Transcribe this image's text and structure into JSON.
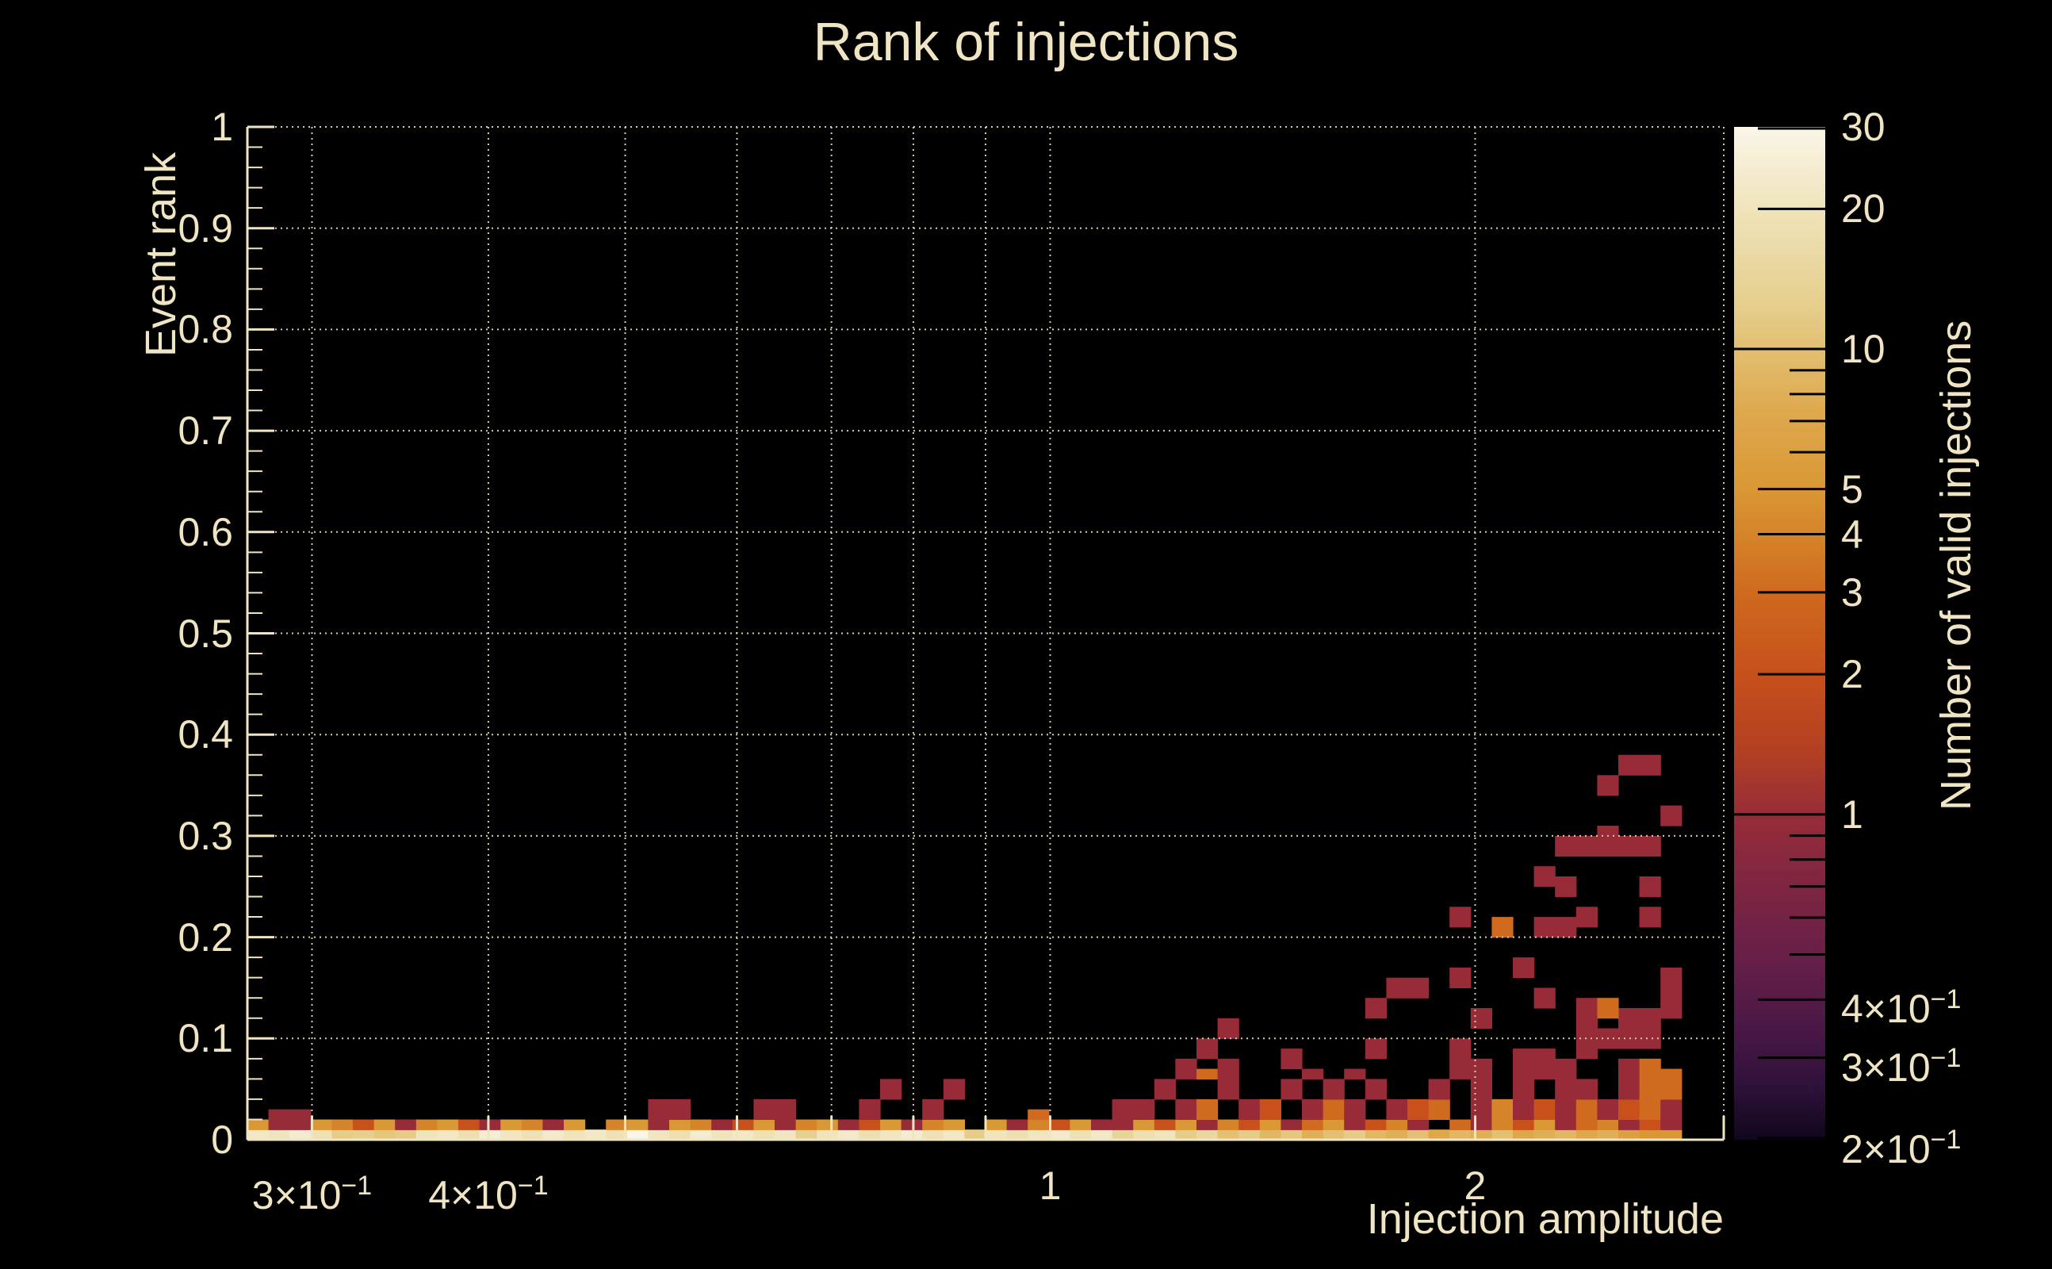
{
  "title": "Rank of injections",
  "colors": {
    "background": "#000000",
    "text": "#f0e5c3",
    "axis": "#f0e5c3",
    "grid": "#d6ccad",
    "palette_tick": "#000000"
  },
  "axes": {
    "x": {
      "title": "Injection amplitude",
      "scale": "log",
      "min": 0.27,
      "max": 3.0,
      "tick_labels": [
        {
          "base": "3×10",
          "sup": "−1",
          "value": 0.3
        },
        {
          "base": "4×10",
          "sup": "−1",
          "value": 0.4
        },
        {
          "base": "1",
          "sup": "",
          "value": 1
        },
        {
          "base": "2",
          "sup": "",
          "value": 2
        }
      ],
      "gridlines": [
        0.3,
        0.4,
        0.5,
        0.6,
        0.7,
        0.8,
        0.9,
        1,
        2,
        3
      ]
    },
    "y": {
      "title": "Event rank",
      "scale": "linear",
      "min": 0,
      "max": 1,
      "major_step": 0.1,
      "minor_step": 0.02,
      "tick_labels": [
        {
          "base": "0",
          "value": 0
        },
        {
          "base": "0.1",
          "value": 0.1
        },
        {
          "base": "0.2",
          "value": 0.2
        },
        {
          "base": "0.3",
          "value": 0.3
        },
        {
          "base": "0.4",
          "value": 0.4
        },
        {
          "base": "0.5",
          "value": 0.5
        },
        {
          "base": "0.6",
          "value": 0.6
        },
        {
          "base": "0.7",
          "value": 0.7
        },
        {
          "base": "0.8",
          "value": 0.8
        },
        {
          "base": "0.9",
          "value": 0.9
        },
        {
          "base": "1",
          "value": 1
        }
      ]
    },
    "z": {
      "title": "Number of valid injections",
      "scale": "log",
      "min": 0.2,
      "max": 30,
      "tick_labels": [
        {
          "base": "30",
          "sup": "",
          "value": 30
        },
        {
          "base": "20",
          "sup": "",
          "value": 20
        },
        {
          "base": "10",
          "sup": "",
          "value": 10
        },
        {
          "base": "5",
          "sup": "",
          "value": 5
        },
        {
          "base": "4",
          "sup": "",
          "value": 4
        },
        {
          "base": "3",
          "sup": "",
          "value": 3
        },
        {
          "base": "2",
          "sup": "",
          "value": 2
        },
        {
          "base": "1",
          "sup": "",
          "value": 1
        },
        {
          "base": "4×10",
          "sup": "−1",
          "value": 0.4
        },
        {
          "base": "3×10",
          "sup": "−1",
          "value": 0.3
        },
        {
          "base": "2×10",
          "sup": "−1",
          "value": 0.2
        }
      ],
      "ticks": [
        {
          "v": 30,
          "k": "lab"
        },
        {
          "v": 20,
          "k": "lab"
        },
        {
          "v": 10,
          "k": "dec"
        },
        {
          "v": 9,
          "k": "min"
        },
        {
          "v": 8,
          "k": "min"
        },
        {
          "v": 7,
          "k": "min"
        },
        {
          "v": 6,
          "k": "min"
        },
        {
          "v": 5,
          "k": "lab"
        },
        {
          "v": 4,
          "k": "lab"
        },
        {
          "v": 3,
          "k": "lab"
        },
        {
          "v": 2,
          "k": "lab"
        },
        {
          "v": 1,
          "k": "dec"
        },
        {
          "v": 0.9,
          "k": "min"
        },
        {
          "v": 0.8,
          "k": "min"
        },
        {
          "v": 0.7,
          "k": "min"
        },
        {
          "v": 0.6,
          "k": "min"
        },
        {
          "v": 0.5,
          "k": "min"
        },
        {
          "v": 0.4,
          "k": "lab"
        },
        {
          "v": 0.3,
          "k": "lab"
        },
        {
          "v": 0.2,
          "k": "lab"
        }
      ]
    }
  },
  "palette_stops": [
    [
      0.0,
      "#faf6e8"
    ],
    [
      0.08,
      "#f0e4bc"
    ],
    [
      0.18,
      "#e5cd8a"
    ],
    [
      0.28,
      "#dea94e"
    ],
    [
      0.36,
      "#da9733"
    ],
    [
      0.46,
      "#cf6a1e"
    ],
    [
      0.54,
      "#c7501b"
    ],
    [
      0.62,
      "#b23f24"
    ],
    [
      0.68,
      "#962c38"
    ],
    [
      0.75,
      "#7e2542"
    ],
    [
      0.82,
      "#671f48"
    ],
    [
      0.89,
      "#4a1846"
    ],
    [
      0.95,
      "#2d1139"
    ],
    [
      1.0,
      "#0f071c"
    ]
  ],
  "chart_data": {
    "type": "heatmap",
    "title": "Rank of injections",
    "xlabel": "Injection amplitude",
    "ylabel": "Event rank",
    "zlabel": "Number of valid injections",
    "x_scale": "log",
    "x_range": [
      0.27,
      3.0
    ],
    "x_bins": 70,
    "y_range": [
      0,
      1
    ],
    "y_bins": 100,
    "z_scale": "log",
    "z_range": [
      0.2,
      30
    ],
    "legend_position": "right-colorbar",
    "grid": "dotted",
    "row0": [
      22,
      20,
      24,
      19,
      12,
      13,
      11,
      12,
      20,
      22,
      18,
      25,
      21,
      19,
      23,
      20,
      22,
      19,
      30,
      21,
      18,
      24,
      20,
      22,
      19,
      21,
      13,
      20,
      23,
      18,
      21,
      24,
      19,
      22,
      12,
      20,
      18,
      21,
      23,
      19,
      22,
      14,
      18,
      20,
      12,
      15,
      10,
      12,
      9,
      11,
      8,
      10,
      12,
      9,
      8,
      10,
      7,
      9,
      8,
      10,
      7,
      8,
      9,
      7,
      8,
      6,
      5,
      5,
      0,
      0
    ],
    "row1": [
      5,
      1,
      1,
      5,
      4,
      2,
      5,
      1,
      4,
      5,
      2,
      1,
      5,
      4,
      1,
      5,
      0,
      4,
      5,
      1,
      5,
      4,
      1,
      2,
      5,
      1,
      4,
      5,
      1,
      2,
      5,
      1,
      4,
      5,
      0,
      5,
      1,
      4,
      2,
      5,
      1,
      1,
      5,
      2,
      5,
      1,
      4,
      2,
      5,
      1,
      3,
      5,
      1,
      2,
      4,
      1,
      0,
      3,
      1,
      4,
      2,
      5,
      1,
      3,
      4,
      1,
      2,
      1,
      0,
      0
    ],
    "cells": [
      [
        1,
        2,
        1,
        1
      ],
      [
        2,
        2,
        1,
        1
      ],
      [
        19,
        2,
        1,
        2
      ],
      [
        20,
        2,
        1,
        2
      ],
      [
        24,
        2,
        1,
        2
      ],
      [
        25,
        2,
        1,
        2
      ],
      [
        29,
        2,
        1,
        2
      ],
      [
        32,
        2,
        1,
        2
      ],
      [
        37,
        2,
        3,
        1
      ],
      [
        41,
        2,
        1,
        2
      ],
      [
        30,
        4,
        1,
        2
      ],
      [
        33,
        4,
        1,
        2
      ],
      [
        42,
        2,
        1,
        2
      ],
      [
        44,
        2,
        1,
        2
      ],
      [
        45,
        2,
        3,
        2
      ],
      [
        47,
        2,
        1,
        2
      ],
      [
        48,
        2,
        2,
        2
      ],
      [
        50,
        2,
        1,
        2
      ],
      [
        51,
        2,
        3,
        2
      ],
      [
        52,
        2,
        1,
        2
      ],
      [
        54,
        2,
        1,
        2
      ],
      [
        55,
        2,
        2,
        2
      ],
      [
        56,
        2,
        3,
        2
      ],
      [
        58,
        2,
        1,
        2
      ],
      [
        59,
        2,
        4,
        2
      ],
      [
        60,
        2,
        1,
        2
      ],
      [
        61,
        2,
        2,
        2
      ],
      [
        62,
        2,
        1,
        2
      ],
      [
        63,
        2,
        3,
        2
      ],
      [
        64,
        2,
        1,
        2
      ],
      [
        65,
        2,
        2,
        2
      ],
      [
        66,
        2,
        3,
        2
      ],
      [
        67,
        2,
        1,
        2
      ],
      [
        43,
        4,
        1,
        2
      ],
      [
        46,
        4,
        1,
        2
      ],
      [
        49,
        4,
        1,
        2
      ],
      [
        51,
        4,
        1,
        2
      ],
      [
        53,
        4,
        1,
        2
      ],
      [
        56,
        4,
        1,
        2
      ],
      [
        58,
        4,
        1,
        2
      ],
      [
        60,
        4,
        1,
        2
      ],
      [
        62,
        4,
        1,
        2
      ],
      [
        63,
        4,
        1,
        2
      ],
      [
        65,
        4,
        1,
        2
      ],
      [
        66,
        4,
        3,
        2
      ],
      [
        67,
        4,
        3,
        2
      ],
      [
        44,
        6,
        1,
        2
      ],
      [
        45,
        6,
        3,
        1
      ],
      [
        46,
        6,
        1,
        2
      ],
      [
        49,
        7,
        1,
        2
      ],
      [
        50,
        6,
        1,
        1
      ],
      [
        52,
        6,
        1,
        1
      ],
      [
        53,
        8,
        1,
        2
      ],
      [
        57,
        6,
        1,
        2
      ],
      [
        57,
        8,
        1,
        2
      ],
      [
        58,
        6,
        1,
        2
      ],
      [
        60,
        6,
        1,
        3
      ],
      [
        61,
        6,
        1,
        3
      ],
      [
        62,
        6,
        1,
        2
      ],
      [
        63,
        8,
        1,
        2
      ],
      [
        65,
        6,
        1,
        2
      ],
      [
        66,
        6,
        3,
        2
      ],
      [
        67,
        6,
        3,
        1
      ],
      [
        45,
        8,
        1,
        2
      ],
      [
        46,
        10,
        1,
        2
      ],
      [
        63,
        10,
        1,
        2
      ],
      [
        64,
        9,
        1,
        2
      ],
      [
        65,
        9,
        1,
        2
      ],
      [
        66,
        9,
        1,
        2
      ],
      [
        58,
        11,
        1,
        2
      ],
      [
        65,
        11,
        1,
        2
      ],
      [
        66,
        11,
        1,
        2
      ],
      [
        53,
        12,
        1,
        2
      ],
      [
        63,
        12,
        1,
        2
      ],
      [
        64,
        12,
        3,
        2
      ],
      [
        67,
        12,
        1,
        3
      ],
      [
        61,
        13,
        1,
        2
      ],
      [
        54,
        14,
        1,
        2
      ],
      [
        55,
        14,
        1,
        2
      ],
      [
        57,
        15,
        1,
        2
      ],
      [
        67,
        15,
        1,
        2
      ],
      [
        60,
        16,
        1,
        2
      ],
      [
        59,
        20,
        3,
        2
      ],
      [
        61,
        20,
        1,
        2
      ],
      [
        62,
        20,
        1,
        2
      ],
      [
        57,
        21,
        1,
        2
      ],
      [
        63,
        21,
        1,
        2
      ],
      [
        66,
        21,
        1,
        2
      ],
      [
        62,
        24,
        1,
        2
      ],
      [
        66,
        24,
        1,
        2
      ],
      [
        61,
        25,
        1,
        2
      ],
      [
        62,
        28,
        1,
        2
      ],
      [
        63,
        28,
        1,
        2
      ],
      [
        64,
        28,
        1,
        3
      ],
      [
        65,
        28,
        1,
        2
      ],
      [
        66,
        28,
        1,
        2
      ],
      [
        67,
        31,
        1,
        2
      ],
      [
        64,
        34,
        1,
        2
      ],
      [
        65,
        36,
        1,
        2
      ],
      [
        66,
        36,
        1,
        2
      ]
    ]
  }
}
